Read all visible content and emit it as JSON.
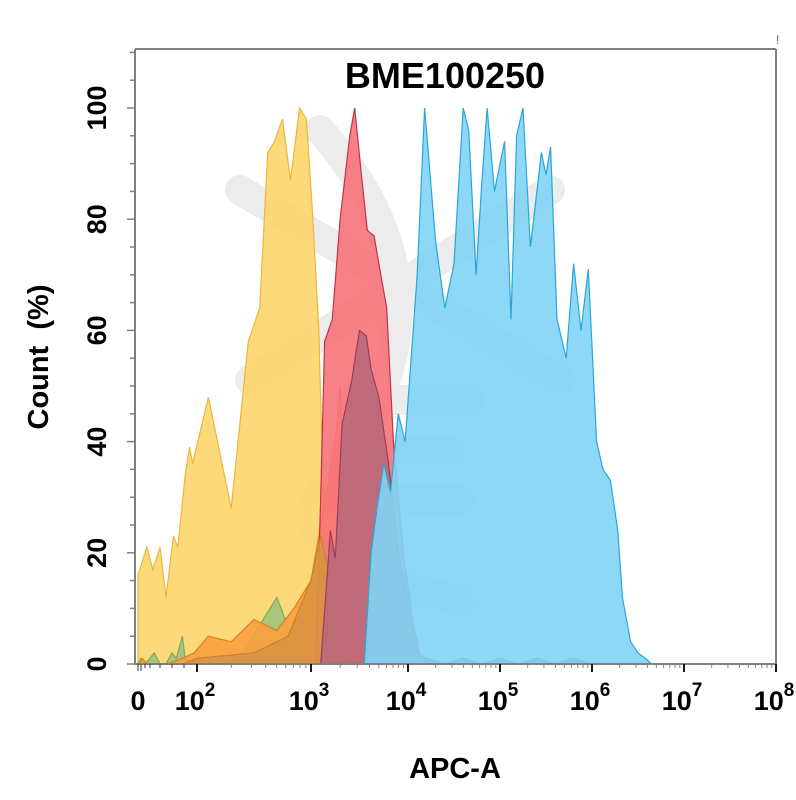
{
  "chart_data": {
    "type": "area",
    "title": "BME100250",
    "xlabel": "APC-A",
    "ylabel": "Count  (%)",
    "xscale": "log (biexponential)",
    "ylim": [
      0,
      110
    ],
    "grid": false,
    "legend": "none",
    "x_ticks": [
      {
        "label": "0",
        "exp": "",
        "pos": 0
      },
      {
        "label": "10",
        "exp": "2",
        "pos": 2
      },
      {
        "label": "10",
        "exp": "3",
        "pos": 3
      },
      {
        "label": "10",
        "exp": "4",
        "pos": 4
      },
      {
        "label": "10",
        "exp": "5",
        "pos": 5
      },
      {
        "label": "10",
        "exp": "6",
        "pos": 6
      },
      {
        "label": "10",
        "exp": "7",
        "pos": 7
      },
      {
        "label": "10",
        "exp": "8",
        "pos": 8
      }
    ],
    "y_ticks": [
      0,
      20,
      40,
      60,
      80,
      100
    ],
    "series": [
      {
        "name": "yellow",
        "color": "#fdd56a",
        "stroke": "#e8b83a",
        "points": [
          [
            0,
            16
          ],
          [
            0.3,
            21
          ],
          [
            0.5,
            17
          ],
          [
            0.75,
            21
          ],
          [
            0.95,
            12
          ],
          [
            1.2,
            23
          ],
          [
            1.35,
            21
          ],
          [
            1.6,
            34
          ],
          [
            1.75,
            39
          ],
          [
            1.85,
            36
          ],
          [
            2.1,
            48
          ],
          [
            2.3,
            28
          ],
          [
            2.45,
            58
          ],
          [
            2.55,
            64
          ],
          [
            2.62,
            92
          ],
          [
            2.68,
            94
          ],
          [
            2.75,
            98
          ],
          [
            2.82,
            87
          ],
          [
            2.9,
            100
          ],
          [
            2.96,
            98
          ],
          [
            3.02,
            80
          ],
          [
            3.08,
            60
          ],
          [
            3.12,
            35
          ],
          [
            3.18,
            15
          ],
          [
            3.25,
            3
          ],
          [
            3.35,
            0
          ]
        ]
      },
      {
        "name": "green",
        "color": "#9fc27a",
        "stroke": "#7ea85a",
        "points": [
          [
            0,
            0
          ],
          [
            0.1,
            1
          ],
          [
            0.25,
            0
          ],
          [
            0.55,
            2
          ],
          [
            0.75,
            0
          ],
          [
            0.95,
            0
          ],
          [
            1.15,
            2
          ],
          [
            1.3,
            1
          ],
          [
            1.5,
            5
          ],
          [
            1.6,
            1
          ],
          [
            1.8,
            0
          ],
          [
            2.4,
            2
          ],
          [
            2.7,
            12
          ],
          [
            2.85,
            4
          ],
          [
            3.0,
            0
          ]
        ]
      },
      {
        "name": "orange",
        "color": "#f7a03e",
        "stroke": "#e07f1a",
        "points": [
          [
            0,
            0
          ],
          [
            0.15,
            1
          ],
          [
            0.3,
            0
          ],
          [
            1.0,
            0
          ],
          [
            1.5,
            1
          ],
          [
            1.9,
            2
          ],
          [
            2.1,
            5
          ],
          [
            2.3,
            4
          ],
          [
            2.5,
            8
          ],
          [
            2.7,
            6
          ],
          [
            2.85,
            10
          ],
          [
            3.0,
            15
          ],
          [
            3.08,
            23
          ],
          [
            3.15,
            30
          ],
          [
            3.25,
            40
          ],
          [
            3.3,
            50
          ],
          [
            3.38,
            20
          ],
          [
            3.45,
            5
          ],
          [
            3.55,
            0
          ]
        ]
      },
      {
        "name": "red",
        "color": "#f7737a",
        "stroke": "#c0334a",
        "points": [
          [
            3.05,
            0
          ],
          [
            3.1,
            30
          ],
          [
            3.14,
            58
          ],
          [
            3.22,
            62
          ],
          [
            3.3,
            80
          ],
          [
            3.4,
            95
          ],
          [
            3.45,
            100
          ],
          [
            3.52,
            88
          ],
          [
            3.58,
            78
          ],
          [
            3.65,
            77
          ],
          [
            3.72,
            70
          ],
          [
            3.78,
            64
          ],
          [
            3.85,
            40
          ],
          [
            3.95,
            20
          ],
          [
            4.05,
            8
          ],
          [
            4.15,
            0
          ]
        ]
      },
      {
        "name": "tan",
        "color": "#d99443",
        "stroke": "#c7822f",
        "points": [
          [
            1.5,
            0
          ],
          [
            2.0,
            1
          ],
          [
            2.5,
            2
          ],
          [
            2.8,
            5
          ],
          [
            3.0,
            15
          ],
          [
            3.1,
            23
          ],
          [
            3.2,
            15
          ],
          [
            3.28,
            5
          ],
          [
            3.35,
            0
          ]
        ]
      },
      {
        "name": "mauve",
        "color": "#b9687a",
        "stroke": "#9a3f5a",
        "points": [
          [
            3.1,
            0
          ],
          [
            3.15,
            12
          ],
          [
            3.2,
            24
          ],
          [
            3.25,
            19
          ],
          [
            3.32,
            43
          ],
          [
            3.42,
            51
          ],
          [
            3.5,
            60
          ],
          [
            3.57,
            59
          ],
          [
            3.62,
            53
          ],
          [
            3.7,
            48
          ],
          [
            3.8,
            36
          ],
          [
            3.9,
            20
          ],
          [
            4.0,
            10
          ],
          [
            4.1,
            2
          ],
          [
            4.2,
            1
          ],
          [
            4.4,
            0
          ],
          [
            4.6,
            1
          ],
          [
            4.8,
            0
          ],
          [
            5.0,
            1
          ],
          [
            5.2,
            0
          ],
          [
            5.4,
            1
          ],
          [
            5.6,
            0
          ],
          [
            5.8,
            1
          ],
          [
            6.0,
            0
          ]
        ]
      },
      {
        "name": "blue",
        "color": "#7fd4f5",
        "stroke": "#2aa6d6",
        "points": [
          [
            3.55,
            0
          ],
          [
            3.62,
            20
          ],
          [
            3.68,
            28
          ],
          [
            3.75,
            36
          ],
          [
            3.82,
            31
          ],
          [
            3.9,
            45
          ],
          [
            3.97,
            40
          ],
          [
            4.1,
            70
          ],
          [
            4.18,
            100
          ],
          [
            4.3,
            76
          ],
          [
            4.4,
            64
          ],
          [
            4.5,
            72
          ],
          [
            4.6,
            100
          ],
          [
            4.66,
            96
          ],
          [
            4.74,
            70
          ],
          [
            4.8,
            86
          ],
          [
            4.86,
            100
          ],
          [
            4.94,
            85
          ],
          [
            5.0,
            90
          ],
          [
            5.05,
            94
          ],
          [
            5.12,
            62
          ],
          [
            5.18,
            95
          ],
          [
            5.25,
            100
          ],
          [
            5.33,
            75
          ],
          [
            5.45,
            92
          ],
          [
            5.5,
            88
          ],
          [
            5.55,
            93
          ],
          [
            5.62,
            62
          ],
          [
            5.72,
            55
          ],
          [
            5.8,
            72
          ],
          [
            5.88,
            60
          ],
          [
            5.96,
            71
          ],
          [
            6.05,
            40
          ],
          [
            6.12,
            35
          ],
          [
            6.2,
            33
          ],
          [
            6.28,
            24
          ],
          [
            6.33,
            12
          ],
          [
            6.42,
            4
          ],
          [
            6.5,
            2
          ],
          [
            6.58,
            1
          ],
          [
            6.65,
            0
          ]
        ]
      }
    ]
  },
  "header": {
    "marker": "!"
  }
}
